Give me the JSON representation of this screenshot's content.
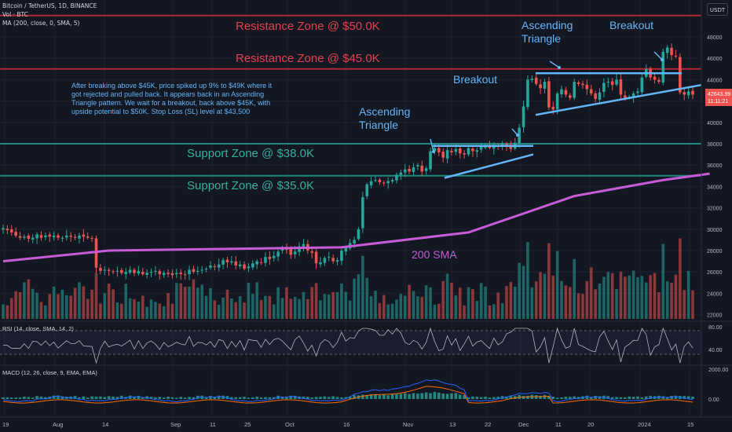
{
  "header": {
    "title": "Bitcoin / TetherUS, 1D, BINANCE",
    "vol": "Vol · BTC",
    "ma": "MA (200, close, 0, SMA, 5)",
    "currency_button": "USDT"
  },
  "price_label": {
    "value": "42643.99",
    "countdown": "11:11:21"
  },
  "colors": {
    "background": "#131722",
    "up": "#26a69a",
    "down": "#ef5350",
    "zone_red": "#b22833",
    "zone_green": "#1c8a7d",
    "sma": "#c85bd6",
    "annotation": "#64b5f6",
    "zone_text_red": "#e0424f",
    "zone_text_green": "#2fb39b",
    "rsi": "#b2b5be",
    "macd": "#2962ff",
    "signal": "#ff6d00"
  },
  "annotations": {
    "res50": "Resistance Zone @ $50.0K",
    "res45": "Resistance Zone @ $45.0K",
    "sup38": "Support Zone @ $38.0K",
    "sup35": "Support Zone @ $35.0K",
    "sma_label": "200 SMA",
    "asc1_line1": "Ascending",
    "asc1_line2": "Triangle",
    "asc2_line1": "Ascending",
    "asc2_line2": "Triangle",
    "breakout1": "Breakout",
    "breakout2": "Breakout",
    "note": [
      "After breaking above $45K, price spiked up 9% to $49K where it",
      "got rejected and pulled back. It appears back in an Ascending",
      "Triangle pattern. We wait for a breakout, back above $45K, with",
      "upside potential to $50K. Stop Loss (SL) level at $43,500"
    ]
  },
  "indicators": {
    "rsi_label": "RSI (14, close, SMA, 14, 2)",
    "macd_label": "MACD (12, 26, close, 9, EMA, EMA)",
    "rsi_ticks": [
      "80.00",
      "40.00"
    ],
    "macd_ticks": [
      "2000.00",
      "0.00"
    ]
  },
  "chart_data": {
    "type": "candlestick",
    "title": "Bitcoin / TetherUS, 1D, BINANCE",
    "y_ticks": [
      48000,
      46000,
      44000,
      42000,
      40000,
      38000,
      36000,
      34000,
      32000,
      30000,
      28000,
      26000,
      24000,
      22000
    ],
    "ylim": [
      20600,
      50600
    ],
    "x_ticks": [
      "19",
      "Aug",
      "14",
      "Sep",
      "11",
      "25",
      "Oct",
      "16",
      "Nov",
      "13",
      "22",
      "Dec",
      "11",
      "20",
      "2024",
      "15"
    ],
    "levels": [
      {
        "name": "Resistance Zone @ $50.0K",
        "value": 50000
      },
      {
        "name": "Resistance Zone @ $45.0K",
        "value": 45000
      },
      {
        "name": "Support Zone @ $38.0K",
        "value": 38000
      },
      {
        "name": "Support Zone @ $35.0K",
        "value": 35000
      }
    ],
    "price_path_close": [
      30100,
      29900,
      29700,
      29400,
      29200,
      29300,
      29100,
      29200,
      29500,
      29200,
      29400,
      29300,
      29400,
      29200,
      29200,
      29400,
      29300,
      29200,
      29400,
      29300,
      29200,
      29100,
      26400,
      26100,
      26200,
      26100,
      26000,
      26100,
      25900,
      26000,
      26200,
      25900,
      26100,
      25800,
      25900,
      26000,
      26100,
      25800,
      25900,
      25800,
      25700,
      25900,
      25800,
      25700,
      26200,
      26000,
      26100,
      26200,
      26300,
      26600,
      26500,
      26700,
      27100,
      26900,
      27000,
      26600,
      26700,
      26300,
      26500,
      26800,
      27000,
      26900,
      27400,
      27200,
      27500,
      27900,
      28200,
      28100,
      27600,
      27900,
      28400,
      28600,
      28000,
      27800,
      26800,
      26900,
      27300,
      27400,
      27000,
      27100,
      28000,
      28300,
      28700,
      29000,
      30000,
      33000,
      34200,
      34500,
      34600,
      34400,
      34300,
      34500,
      34600,
      35100,
      35300,
      35600,
      35400,
      35800,
      36000,
      35400,
      35700,
      37300,
      37600,
      37200,
      36700,
      37400,
      37200,
      37500,
      37100,
      37000,
      37600,
      37300,
      37400,
      37700,
      37800,
      37600,
      37900,
      37800,
      38000,
      37700,
      37500,
      38100,
      39500,
      41500,
      44000,
      44100,
      43600,
      43200,
      43800,
      41400,
      41200,
      42700,
      43100,
      42600,
      42300,
      43800,
      43600,
      43500,
      43100,
      42700,
      42200,
      42800,
      43700,
      43800,
      43500,
      44000,
      42600,
      42300,
      42400,
      42700,
      42900,
      44200,
      45000,
      44200,
      44000,
      43800,
      46600,
      47000,
      46300,
      46200,
      42800,
      42600,
      42900,
      42600
    ],
    "sma200": [
      [
        0,
        27000
      ],
      [
        25,
        28000
      ],
      [
        80,
        28300
      ],
      [
        110,
        29700
      ],
      [
        135,
        33100
      ],
      [
        156,
        34600
      ],
      [
        167,
        35200
      ]
    ],
    "asc_triangle_1": {
      "resistance": 37800,
      "support_start": 34800,
      "support_end": 37000
    },
    "asc_triangle_2": {
      "resistance": 44600,
      "support_start": 40700,
      "support_end": 43500
    },
    "rsi": {
      "overbought": 70,
      "oversold": 30,
      "last": 45
    },
    "macd": {
      "last_histogram": -300
    }
  }
}
